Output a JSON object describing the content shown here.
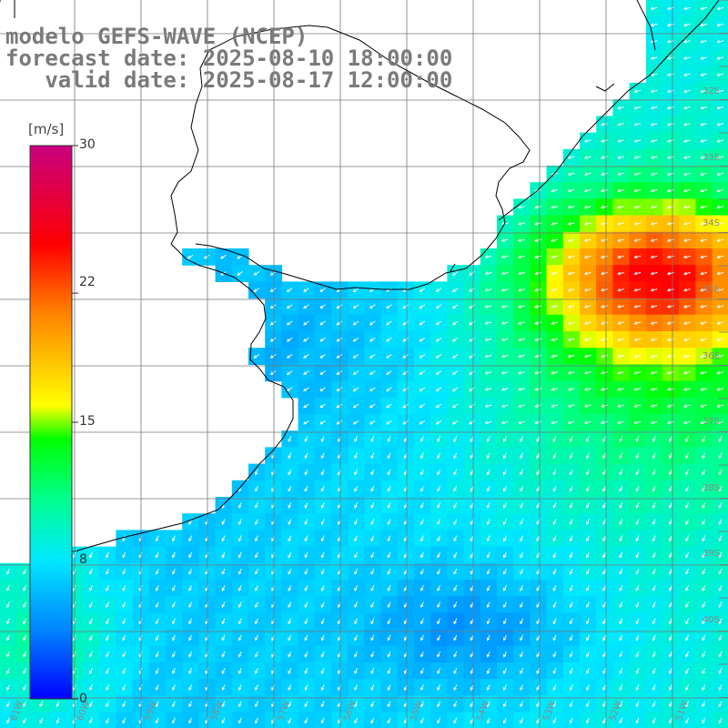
{
  "title": {
    "line1": "modelo GEFS-WAVE (NCEP)",
    "line2": "forecast date: 2025-08-10 18:00:00",
    "line3": "   valid date: 2025-08-17 12:00:00"
  },
  "colorbar": {
    "unit": "[m/s]",
    "ticks": [
      "30",
      "22",
      "15",
      "8",
      "0"
    ],
    "tick_values": [
      30,
      22,
      15,
      8,
      0
    ],
    "min": 0,
    "max": 30,
    "colors": [
      "#0000ff",
      "#0080ff",
      "#00e0ff",
      "#00ff80",
      "#00ff00",
      "#ffff00",
      "#ff8000",
      "#ff0000",
      "#c00080"
    ]
  },
  "map": {
    "parameter": "wind speed",
    "lat_labels": [
      "32S",
      "33S",
      "34S",
      "35S",
      "36S",
      "37S",
      "38S",
      "39S",
      "40S"
    ],
    "lon_labels": [
      "61W",
      "60W",
      "59W",
      "58W",
      "57W",
      "56W",
      "55W",
      "54W",
      "53W",
      "52W",
      "51W"
    ],
    "grid": true,
    "wind_direction": "toward southwest"
  }
}
